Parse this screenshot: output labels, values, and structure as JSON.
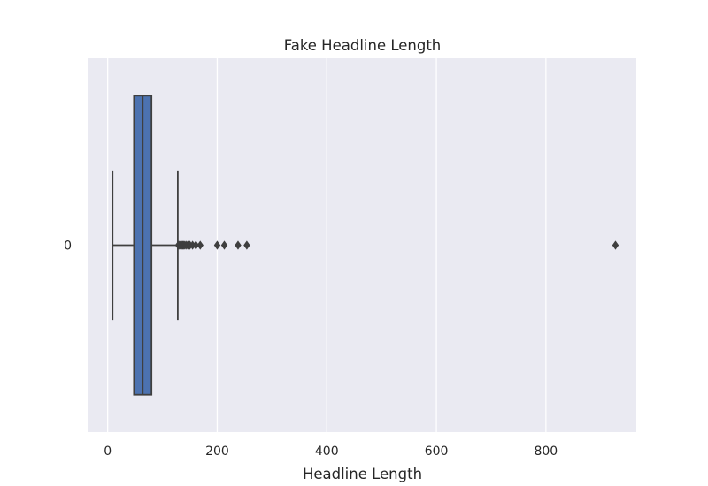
{
  "chart_data": {
    "type": "box",
    "orientation": "horizontal",
    "title": "Fake Headline Length",
    "xlabel": "Headline Length",
    "ylabel": "",
    "xlim": [
      -35,
      965
    ],
    "xticks": [
      0,
      200,
      400,
      600,
      800
    ],
    "categories": [
      "0"
    ],
    "grid": true,
    "background": "#eaeaf2",
    "grid_color": "#ffffff",
    "box_color": "#4c72b0",
    "line_color": "#3f3f3f",
    "boxes": [
      {
        "category": "0",
        "whisker_low": 9,
        "q1": 48,
        "median": 64,
        "q3": 80,
        "whisker_high": 128,
        "outliers": [
          129,
          131,
          133,
          135,
          137,
          139,
          141,
          144,
          147,
          150,
          155,
          161,
          169,
          200,
          213,
          238,
          254,
          927
        ]
      }
    ]
  }
}
